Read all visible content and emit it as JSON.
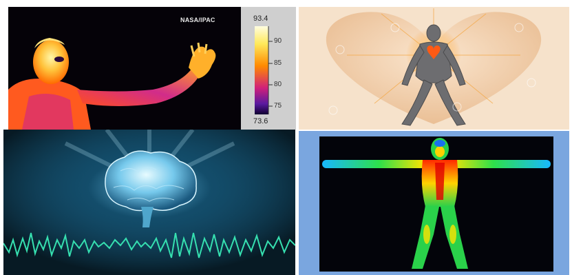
{
  "panels": {
    "thermal_person": {
      "credit": "NASA/IPAC",
      "scale": {
        "max": "93.4",
        "min": "73.6",
        "ticks": [
          "90",
          "85",
          "80",
          "75"
        ]
      }
    },
    "heart_figure": {},
    "brain_wave": {},
    "thermal_body": {}
  },
  "colors": {
    "thermal_hot": "#fff6a8",
    "thermal_mid": "#ff7a00",
    "thermal_low": "#7b1aa6",
    "wave": "#36e0b0",
    "heart_bg": "#f4dcc1",
    "frame_blue": "#7aa6df"
  }
}
